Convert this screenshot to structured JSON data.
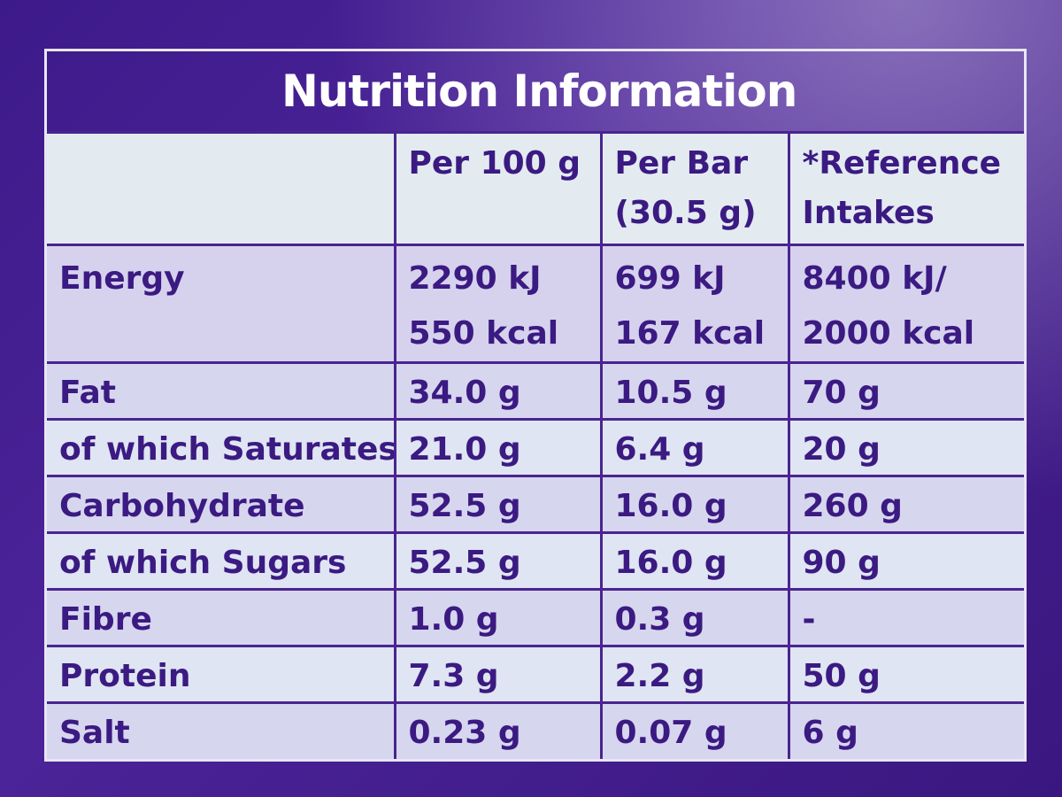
{
  "title": "Nutrition Information",
  "headers": {
    "per_100g": "Per 100 g",
    "per_bar_line1": "Per Bar",
    "per_bar_line2": "(30.5 g)",
    "ref_line1": "*Reference",
    "ref_line2": "Intakes"
  },
  "energy": {
    "label": "Energy",
    "per_100g_kj": "2290 kJ",
    "per_100g_kcal": "550 kcal",
    "per_bar_kj": "699 kJ",
    "per_bar_kcal": "167 kcal",
    "ref_kj": "8400 kJ/",
    "ref_kcal": "2000 kcal"
  },
  "rows": [
    {
      "label": "Fat",
      "per_100g": "34.0 g",
      "per_bar": "10.5 g",
      "ref": "70 g"
    },
    {
      "label": "of which Saturates",
      "per_100g": "21.0 g",
      "per_bar": "6.4 g",
      "ref": "20 g"
    },
    {
      "label": "Carbohydrate",
      "per_100g": "52.5 g",
      "per_bar": "16.0 g",
      "ref": "260 g"
    },
    {
      "label": "of which Sugars",
      "per_100g": "52.5 g",
      "per_bar": "16.0 g",
      "ref": "90 g"
    },
    {
      "label": "Fibre",
      "per_100g": "1.0 g",
      "per_bar": "0.3 g",
      "ref": "-"
    },
    {
      "label": "Protein",
      "per_100g": "7.3 g",
      "per_bar": "2.2 g",
      "ref": "50 g"
    },
    {
      "label": "Salt",
      "per_100g": "0.23 g",
      "per_bar": "0.07 g",
      "ref": "6 g"
    }
  ],
  "colors": {
    "packaging_purple": "#4b2499",
    "table_text": "#3b1a82",
    "cell_light": "#dfe5f2",
    "cell_lavender": "#d6d2ee"
  }
}
